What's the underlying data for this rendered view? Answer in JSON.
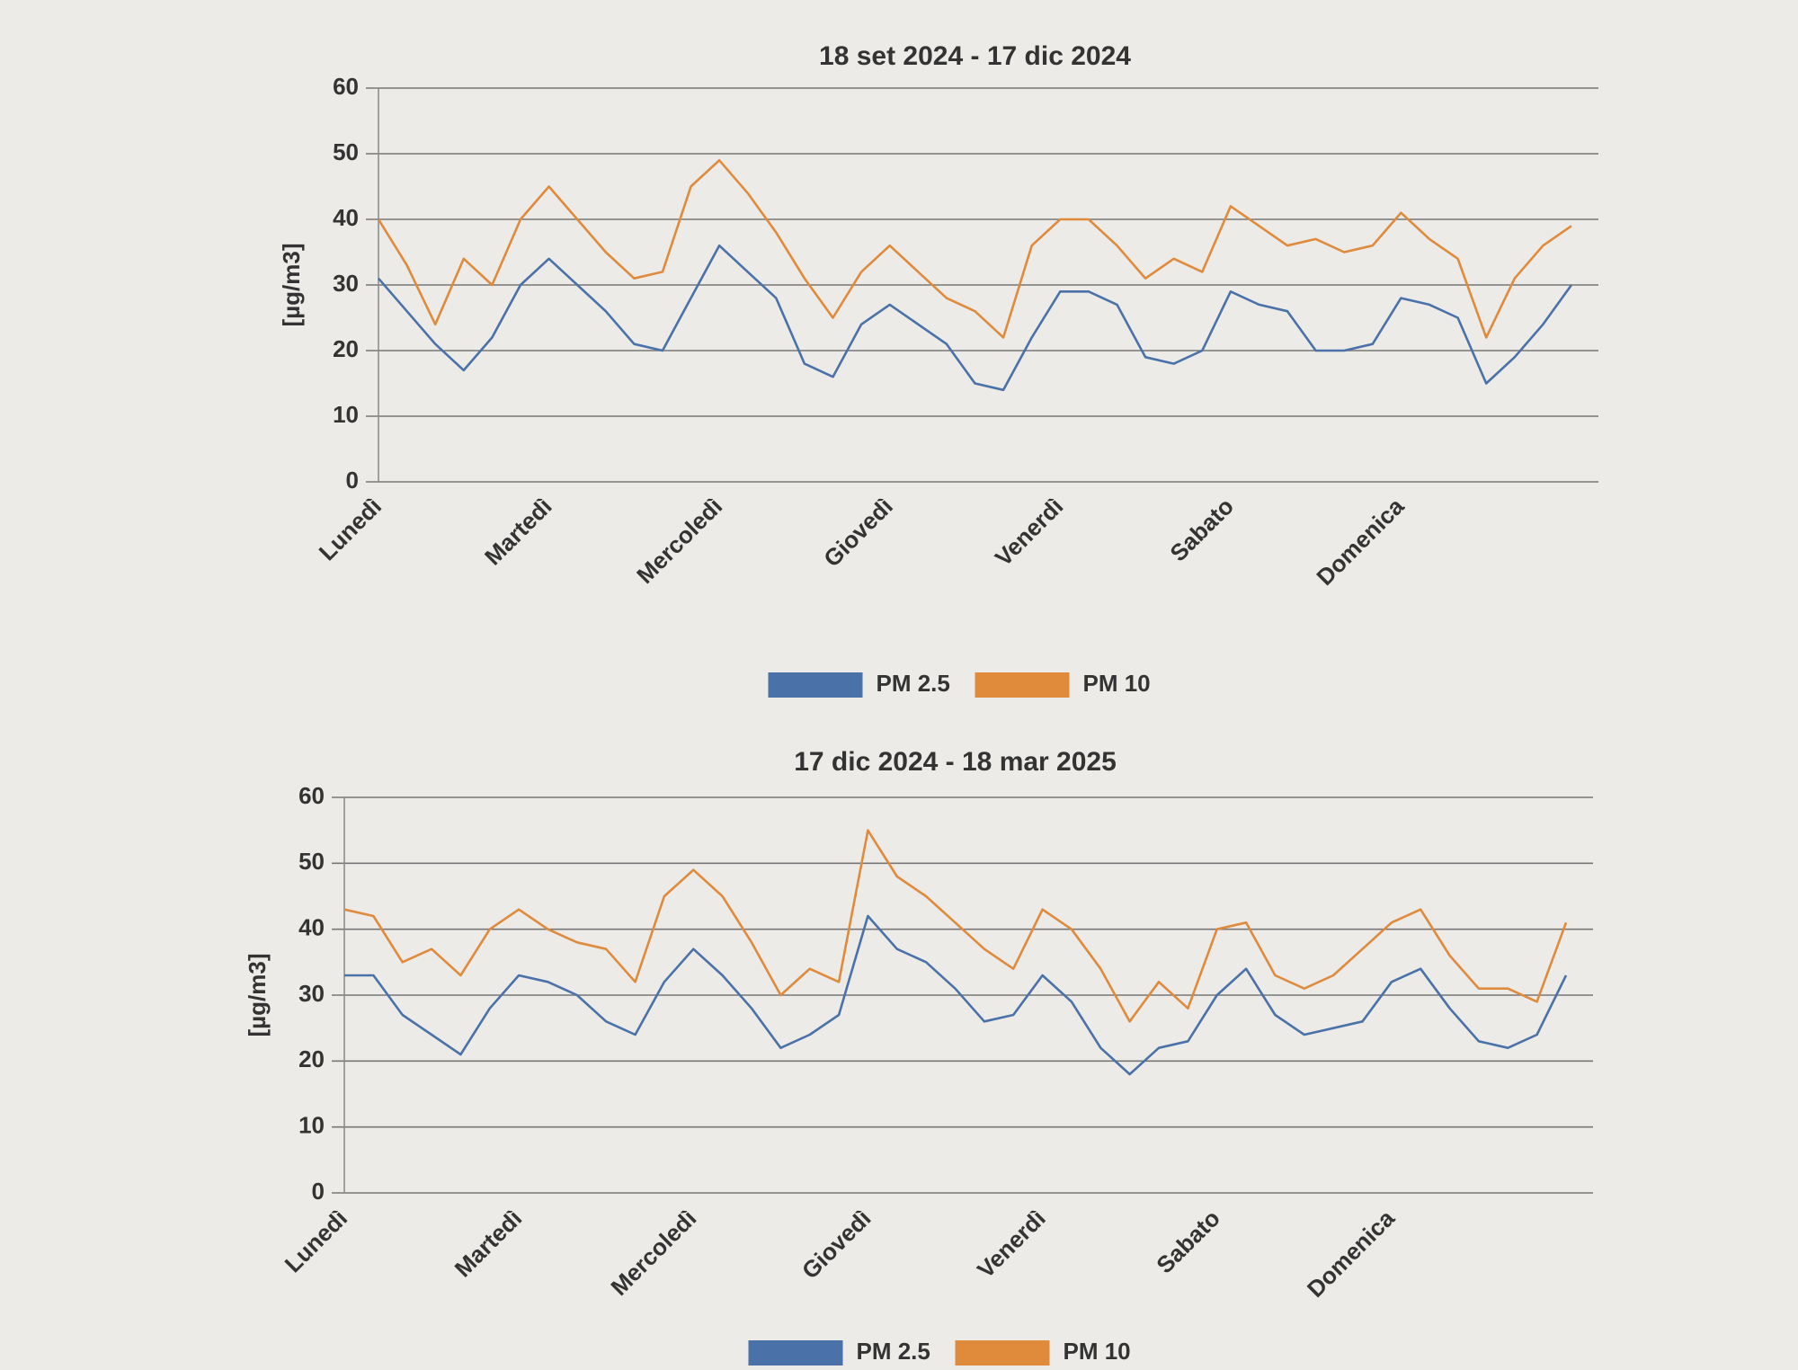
{
  "chart_data": [
    {
      "type": "line",
      "title": "18 set 2024 - 17 dic 2024",
      "y_label": "[µg/m3]",
      "categories": [
        "Lunedì",
        null,
        null,
        null,
        null,
        null,
        "Martedì",
        null,
        null,
        null,
        null,
        null,
        "Mercoledì",
        null,
        null,
        null,
        null,
        null,
        "Giovedì",
        null,
        null,
        null,
        null,
        null,
        "Venerdì",
        null,
        null,
        null,
        null,
        null,
        "Sabato",
        null,
        null,
        null,
        null,
        null,
        "Domenica",
        null,
        null,
        null,
        null,
        null,
        null
      ],
      "series": [
        {
          "name": "PM 2.5",
          "color": "#4a72a8",
          "values": [
            31,
            26,
            21,
            17,
            22,
            30,
            34,
            30,
            26,
            21,
            20,
            28,
            36,
            32,
            28,
            18,
            16,
            24,
            27,
            24,
            21,
            15,
            14,
            22,
            29,
            29,
            27,
            19,
            18,
            20,
            29,
            27,
            26,
            20,
            20,
            21,
            28,
            27,
            25,
            15,
            19,
            24,
            30
          ]
        },
        {
          "name": "PM 10",
          "color": "#e08a3c",
          "values": [
            40,
            33,
            24,
            34,
            30,
            40,
            45,
            40,
            35,
            31,
            32,
            45,
            49,
            44,
            38,
            31,
            25,
            32,
            36,
            32,
            28,
            26,
            22,
            36,
            40,
            40,
            36,
            31,
            34,
            32,
            42,
            39,
            36,
            37,
            35,
            36,
            41,
            37,
            34,
            22,
            31,
            36,
            39
          ]
        }
      ],
      "ylim": [
        0,
        60
      ],
      "yticks": [
        0,
        10,
        20,
        30,
        40,
        50,
        60
      ],
      "grid": true,
      "legend": "bottom"
    },
    {
      "type": "line",
      "title": "17 dic 2024 - 18 mar 2025",
      "y_label": "[µg/m3]",
      "categories": [
        "Lunedì",
        null,
        null,
        null,
        null,
        null,
        "Martedì",
        null,
        null,
        null,
        null,
        null,
        "Mercoledì",
        null,
        null,
        null,
        null,
        null,
        "Giovedì",
        null,
        null,
        null,
        null,
        null,
        "Venerdì",
        null,
        null,
        null,
        null,
        null,
        "Sabato",
        null,
        null,
        null,
        null,
        null,
        "Domenica",
        null,
        null,
        null,
        null,
        null,
        null
      ],
      "series": [
        {
          "name": "PM 2.5",
          "color": "#4a72a8",
          "values": [
            33,
            33,
            27,
            24,
            21,
            28,
            33,
            32,
            30,
            26,
            24,
            32,
            37,
            33,
            28,
            22,
            24,
            27,
            42,
            37,
            35,
            31,
            26,
            27,
            33,
            29,
            22,
            18,
            22,
            23,
            30,
            34,
            27,
            24,
            25,
            26,
            32,
            34,
            28,
            23,
            22,
            24,
            33
          ]
        },
        {
          "name": "PM 10",
          "color": "#e08a3c",
          "values": [
            43,
            42,
            35,
            37,
            33,
            40,
            43,
            40,
            38,
            37,
            32,
            45,
            49,
            45,
            38,
            30,
            34,
            32,
            55,
            48,
            45,
            41,
            37,
            34,
            43,
            40,
            34,
            26,
            32,
            28,
            40,
            41,
            33,
            31,
            33,
            37,
            41,
            43,
            36,
            31,
            31,
            29,
            41
          ]
        }
      ],
      "ylim": [
        0,
        60
      ],
      "yticks": [
        0,
        10,
        20,
        30,
        40,
        50,
        60
      ],
      "grid": true,
      "legend": "bottom"
    }
  ]
}
